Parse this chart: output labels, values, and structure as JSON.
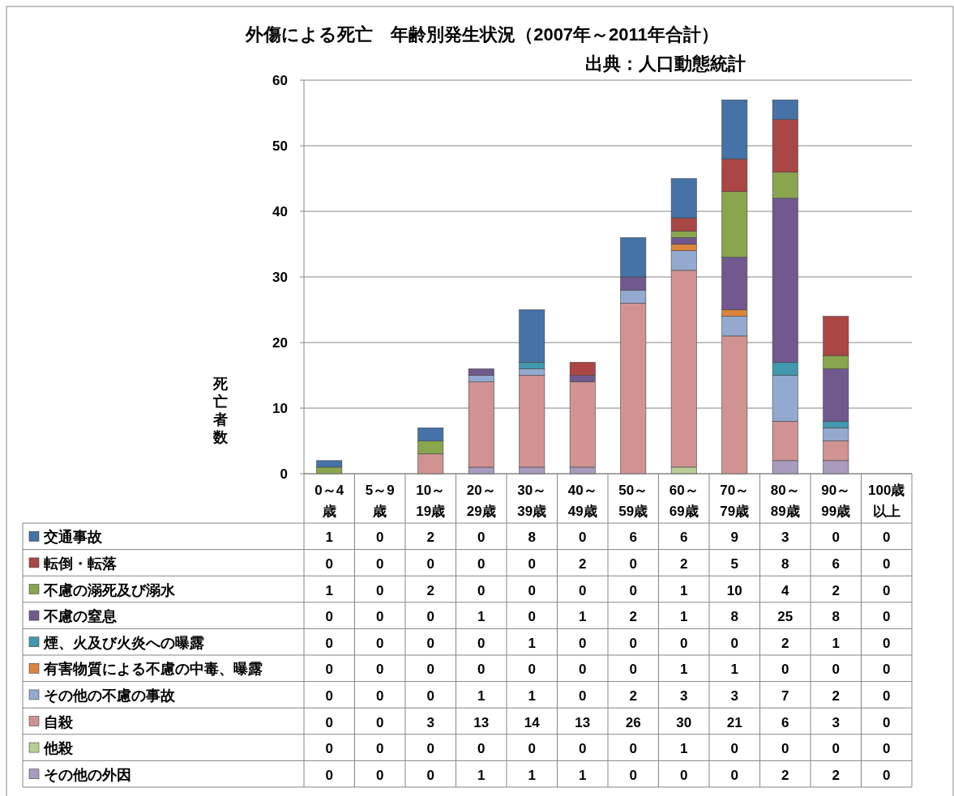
{
  "chart_data": {
    "type": "bar",
    "title": "外傷による死亡　年齢別発生状況（2007年～2011年合計）",
    "subtitle": "出典：人口動態統計",
    "ylabel": "死亡者数",
    "categories": [
      "0～4歳",
      "5～9歳",
      "10～19歳",
      "20～29歳",
      "30～39歳",
      "40～49歳",
      "50～59歳",
      "60～69歳",
      "70～79歳",
      "80～89歳",
      "90～99歳",
      "100歳以上"
    ],
    "stacked": true,
    "ylim": [
      0,
      60
    ],
    "yticks": [
      0,
      10,
      20,
      30,
      40,
      50,
      60
    ],
    "grid": "y",
    "data_labels": true,
    "legend": "bottom",
    "series": [
      {
        "name": "その他の外因",
        "color": "#a99bbd",
        "values": [
          0,
          0,
          0,
          1,
          1,
          1,
          0,
          0,
          0,
          2,
          2,
          0
        ]
      },
      {
        "name": "他殺",
        "color": "#b9cd96",
        "values": [
          0,
          0,
          0,
          0,
          0,
          0,
          0,
          1,
          0,
          0,
          0,
          0
        ]
      },
      {
        "name": "自殺",
        "color": "#d19392",
        "values": [
          0,
          0,
          3,
          13,
          14,
          13,
          26,
          30,
          21,
          6,
          3,
          0
        ]
      },
      {
        "name": "その他の不慮の事故",
        "color": "#93a9cf",
        "values": [
          0,
          0,
          0,
          1,
          1,
          0,
          2,
          3,
          3,
          7,
          2,
          0
        ]
      },
      {
        "name": "有害物質による不慮の中毒、曝露",
        "color": "#db843d",
        "values": [
          0,
          0,
          0,
          0,
          0,
          0,
          0,
          1,
          1,
          0,
          0,
          0
        ]
      },
      {
        "name": "煙、火及び火炎への曝露",
        "color": "#4198af",
        "values": [
          0,
          0,
          0,
          0,
          1,
          0,
          0,
          0,
          0,
          2,
          1,
          0
        ]
      },
      {
        "name": "不慮の窒息",
        "color": "#71588f",
        "values": [
          0,
          0,
          0,
          1,
          0,
          1,
          2,
          1,
          8,
          25,
          8,
          0
        ]
      },
      {
        "name": "不慮の溺死及び溺水",
        "color": "#89a54e",
        "values": [
          1,
          0,
          2,
          0,
          0,
          0,
          0,
          1,
          10,
          4,
          2,
          0
        ]
      },
      {
        "name": "転倒・転落",
        "color": "#aa4643",
        "values": [
          0,
          0,
          0,
          0,
          0,
          2,
          0,
          2,
          5,
          8,
          6,
          0
        ]
      },
      {
        "name": "交通事故",
        "color": "#4572a7",
        "values": [
          1,
          0,
          2,
          0,
          8,
          0,
          6,
          6,
          9,
          3,
          0,
          0
        ]
      }
    ]
  }
}
